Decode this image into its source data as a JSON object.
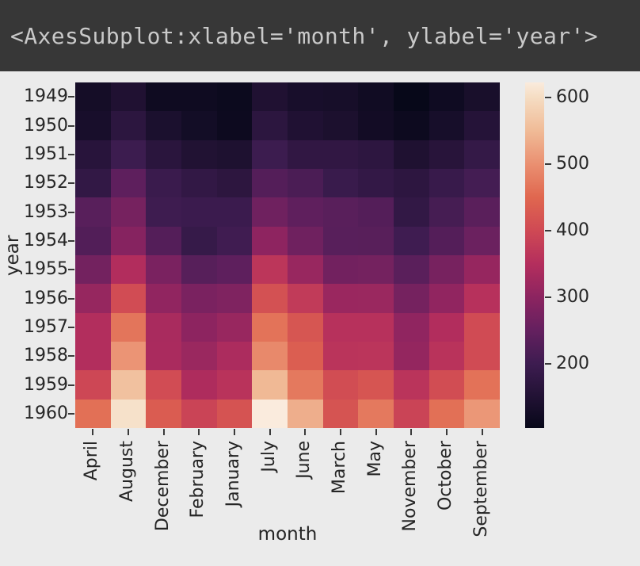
{
  "header": {
    "title": "<AxesSubplot:xlabel='month', ylabel='year'>"
  },
  "chart_data": {
    "type": "heatmap",
    "xlabel": "month",
    "ylabel": "year",
    "columns": [
      "April",
      "August",
      "December",
      "February",
      "January",
      "July",
      "June",
      "March",
      "May",
      "November",
      "October",
      "September"
    ],
    "rows": [
      "1949",
      "1950",
      "1951",
      "1952",
      "1953",
      "1954",
      "1955",
      "1956",
      "1957",
      "1958",
      "1959",
      "1960"
    ],
    "values": [
      [
        129,
        148,
        118,
        118,
        112,
        148,
        135,
        132,
        121,
        104,
        119,
        136
      ],
      [
        135,
        170,
        140,
        126,
        115,
        170,
        149,
        141,
        125,
        114,
        133,
        158
      ],
      [
        163,
        199,
        166,
        150,
        145,
        199,
        178,
        178,
        172,
        146,
        162,
        184
      ],
      [
        181,
        242,
        194,
        180,
        171,
        230,
        218,
        193,
        183,
        172,
        191,
        209
      ],
      [
        235,
        272,
        201,
        196,
        196,
        264,
        243,
        236,
        229,
        180,
        211,
        237
      ],
      [
        227,
        293,
        229,
        188,
        204,
        302,
        264,
        235,
        234,
        203,
        229,
        259
      ],
      [
        269,
        347,
        278,
        233,
        242,
        364,
        315,
        267,
        270,
        237,
        274,
        312
      ],
      [
        313,
        405,
        306,
        277,
        284,
        413,
        374,
        317,
        318,
        271,
        306,
        355
      ],
      [
        348,
        467,
        336,
        301,
        315,
        465,
        422,
        356,
        355,
        305,
        347,
        404
      ],
      [
        348,
        505,
        337,
        318,
        340,
        491,
        435,
        362,
        363,
        310,
        359,
        404
      ],
      [
        396,
        559,
        405,
        342,
        360,
        548,
        472,
        406,
        420,
        362,
        407,
        463
      ],
      [
        461,
        606,
        432,
        391,
        417,
        622,
        535,
        419,
        472,
        390,
        461,
        508
      ]
    ],
    "vmin": 104,
    "vmax": 622,
    "colorbar_ticks": [
      600,
      500,
      400,
      300,
      200
    ],
    "colormap_name": "rocket",
    "colormap_stops": [
      [
        104,
        "#070819"
      ],
      [
        200,
        "#3D1C50"
      ],
      [
        250,
        "#64205F"
      ],
      [
        300,
        "#8C2460"
      ],
      [
        350,
        "#B42E5D"
      ],
      [
        400,
        "#CF4954"
      ],
      [
        450,
        "#E0674F"
      ],
      [
        500,
        "#EA9071"
      ],
      [
        550,
        "#F0BB97"
      ],
      [
        600,
        "#F5DDC3"
      ],
      [
        622,
        "#FAEBDD"
      ]
    ],
    "legend_position": "right",
    "grid": false
  },
  "colors": {
    "figure_bg": "#EBEBEB",
    "header_bg": "#373737",
    "header_text": "#C9C9C9",
    "tick_text": "#262626"
  }
}
